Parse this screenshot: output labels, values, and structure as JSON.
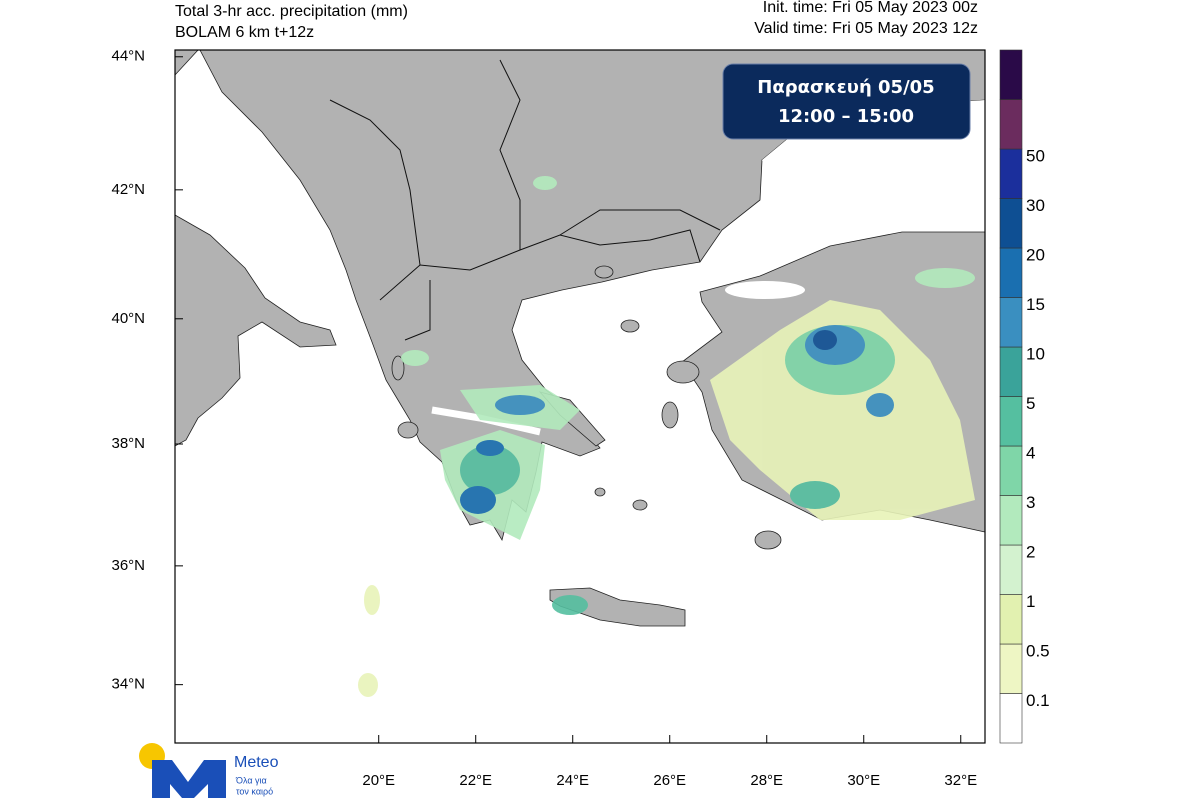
{
  "header": {
    "title": "Total 3-hr acc. precipitation (mm)",
    "subtitle": "BOLAM 6 km t+12z",
    "init_time": "Init. time: Fri 05 May 2023 00z",
    "valid_time": "Valid time: Fri 05 May 2023 12z"
  },
  "map": {
    "projection": "mercator",
    "xlim": [
      15.8,
      32.5
    ],
    "ylim": [
      33,
      44.1
    ],
    "xticks": [
      {
        "value": 20,
        "label": "20°E"
      },
      {
        "value": 22,
        "label": "22°E"
      },
      {
        "value": 24,
        "label": "24°E"
      },
      {
        "value": 26,
        "label": "26°E"
      },
      {
        "value": 28,
        "label": "28°E"
      },
      {
        "value": 30,
        "label": "30°E"
      },
      {
        "value": 32,
        "label": "32°E"
      }
    ],
    "yticks": [
      {
        "value": 34,
        "label": "34°N"
      },
      {
        "value": 36,
        "label": "36°N"
      },
      {
        "value": 38,
        "label": "38°N"
      },
      {
        "value": 40,
        "label": "40°N"
      },
      {
        "value": 42,
        "label": "42°N"
      },
      {
        "value": 44,
        "label": "44°N"
      }
    ]
  },
  "colorbar": {
    "levels": [
      0.1,
      0.5,
      1,
      2,
      3,
      4,
      5,
      10,
      15,
      20,
      30,
      50
    ],
    "colors": [
      "#ffffff",
      "#eef6c4",
      "#e2f1b0",
      "#d3f2cf",
      "#b2eabd",
      "#7fd6a8",
      "#55bfa0",
      "#3aa39a",
      "#3a8fc0",
      "#1a6fb0",
      "#0e4f93",
      "#1b2f9c",
      "#6b2c5e",
      "#2a0a48"
    ]
  },
  "overlay": {
    "day": "Παρασκευή  05/05",
    "time": "12:00 – 15:00"
  },
  "logo": {
    "name": "Meteo",
    "slogan_1": "Όλα για",
    "slogan_2": "τον καιρό"
  }
}
